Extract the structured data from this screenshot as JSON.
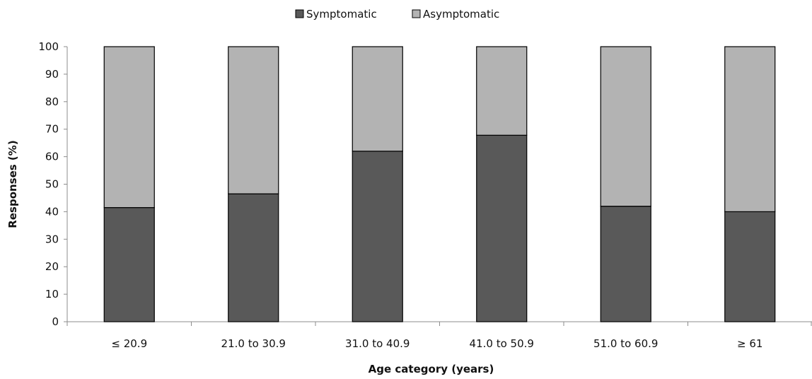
{
  "chart_data": {
    "type": "bar",
    "stacked": true,
    "categories": [
      "≤ 20.9",
      "21.0 to 30.9",
      "31.0 to 40.9",
      "41.0 to 50.9",
      "51.0 to 60.9",
      "≥ 61"
    ],
    "series": [
      {
        "name": "Symptomatic",
        "color": "#595959",
        "values": [
          41.5,
          46.5,
          62,
          67.8,
          42,
          40
        ]
      },
      {
        "name": "Asymptomatic",
        "color": "#b3b3b3",
        "values": [
          58.5,
          53.5,
          38,
          32.2,
          58,
          60
        ]
      }
    ],
    "xlabel": "Age category (years)",
    "ylabel": "Responses (%)",
    "ylim": [
      0,
      100
    ],
    "yticks": [
      0,
      10,
      20,
      30,
      40,
      50,
      60,
      70,
      80,
      90,
      100
    ],
    "grid": false,
    "legend_position": "top-center"
  }
}
